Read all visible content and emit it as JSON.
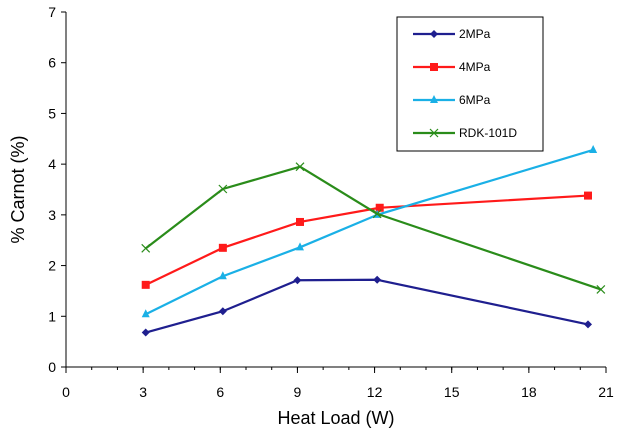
{
  "chart_data": {
    "type": "line",
    "title": "",
    "xlabel": "Heat Load (W)",
    "ylabel": "% Carnot (%)",
    "xlim": [
      0,
      21
    ],
    "ylim": [
      0,
      7
    ],
    "x_ticks": [
      0,
      3,
      6,
      9,
      12,
      15,
      18,
      21
    ],
    "y_ticks": [
      0,
      1,
      2,
      3,
      4,
      5,
      6,
      7
    ],
    "x_minor_step": 1,
    "grid": false,
    "legend_position": "top-right (inside)",
    "series": [
      {
        "name": "2MPa",
        "color": "#1f1f8f",
        "marker": "diamond",
        "x": [
          3.1,
          6.1,
          9.0,
          12.1,
          20.3
        ],
        "y": [
          0.68,
          1.1,
          1.71,
          1.72,
          0.84
        ]
      },
      {
        "name": "4MPa",
        "color": "#ff1a1a",
        "marker": "square",
        "x": [
          3.1,
          6.1,
          9.1,
          12.2,
          20.3
        ],
        "y": [
          1.62,
          2.35,
          2.86,
          3.14,
          3.38
        ]
      },
      {
        "name": "6MPa",
        "color": "#1ab0e6",
        "marker": "triangle",
        "x": [
          3.1,
          6.1,
          9.1,
          12.1,
          20.5
        ],
        "y": [
          1.04,
          1.79,
          2.36,
          3.0,
          4.28
        ]
      },
      {
        "name": "RDK-101D",
        "color": "#2a8c1a",
        "marker": "x",
        "x": [
          3.1,
          6.1,
          9.1,
          12.1,
          20.8
        ],
        "y": [
          2.34,
          3.51,
          3.95,
          3.02,
          1.53
        ]
      }
    ]
  }
}
